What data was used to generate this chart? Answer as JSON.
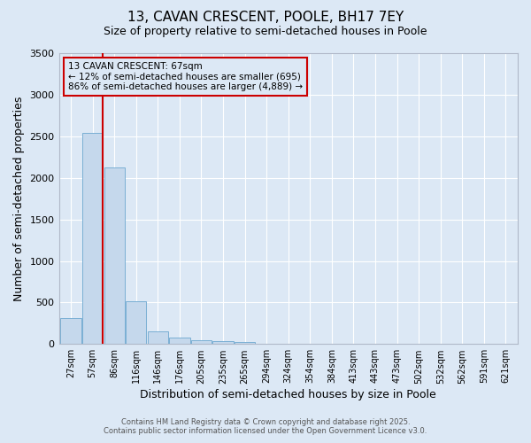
{
  "title": "13, CAVAN CRESCENT, POOLE, BH17 7EY",
  "subtitle": "Size of property relative to semi-detached houses in Poole",
  "xlabel": "Distribution of semi-detached houses by size in Poole",
  "ylabel": "Number of semi-detached properties",
  "categories": [
    "27sqm",
    "57sqm",
    "86sqm",
    "116sqm",
    "146sqm",
    "176sqm",
    "205sqm",
    "235sqm",
    "265sqm",
    "294sqm",
    "324sqm",
    "354sqm",
    "384sqm",
    "413sqm",
    "443sqm",
    "473sqm",
    "502sqm",
    "532sqm",
    "562sqm",
    "591sqm",
    "621sqm"
  ],
  "values": [
    310,
    2540,
    2130,
    520,
    155,
    75,
    45,
    35,
    30,
    0,
    0,
    0,
    0,
    0,
    0,
    0,
    0,
    0,
    0,
    0,
    0
  ],
  "bar_color": "#c5d8ec",
  "bar_edgecolor": "#7aafd4",
  "background_color": "#dce8f5",
  "grid_color": "#ffffff",
  "property_line_color": "#cc0000",
  "annotation_text_line1": "13 CAVAN CRESCENT: 67sqm",
  "annotation_text_line2": "← 12% of semi-detached houses are smaller (695)",
  "annotation_text_line3": "86% of semi-detached houses are larger (4,889) →",
  "annotation_box_color": "#cc0000",
  "ylim": [
    0,
    3500
  ],
  "yticks": [
    0,
    500,
    1000,
    1500,
    2000,
    2500,
    3000,
    3500
  ],
  "footnote1": "Contains HM Land Registry data © Crown copyright and database right 2025.",
  "footnote2": "Contains public sector information licensed under the Open Government Licence v3.0.",
  "title_fontsize": 11,
  "subtitle_fontsize": 9,
  "label_fontsize": 9,
  "tick_fontsize": 7,
  "annot_fontsize": 7.5,
  "footnote_fontsize": 6
}
